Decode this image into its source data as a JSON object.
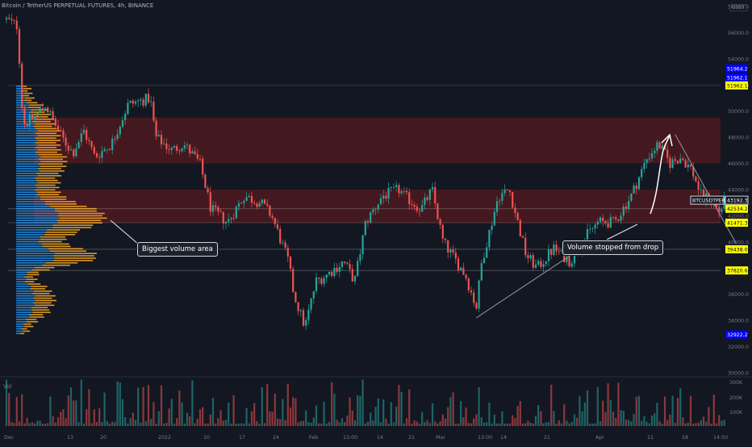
{
  "header": {
    "title": "Bitcoin / TetherUS PERPETUAL FUTURES, 4h, BINANCE",
    "currency": "USDT"
  },
  "volume_pane": {
    "label": "Vol",
    "ticks": [
      "300K",
      "200K",
      "100K"
    ]
  },
  "callouts": {
    "biggest_volume": "Biggest volume area",
    "volume_stopped": "Volume stopped from drop"
  },
  "price_ticks": [
    "58000.0",
    "56000.0",
    "54000.0",
    "52000.0",
    "50000.0",
    "48000.0",
    "46000.0",
    "44000.0",
    "42000.0",
    "40000.0",
    "38000.0",
    "36000.0",
    "34000.0",
    "32000.0",
    "30000.0"
  ],
  "time_ticks": [
    "Dec",
    "13",
    "20",
    "2022",
    "10",
    "17",
    "24",
    "Feb",
    "13:00",
    "14",
    "21",
    "Mar",
    "13:00",
    "14",
    "21",
    "Apr",
    "11",
    "18",
    "14:50"
  ],
  "price_labels": [
    {
      "text": "51964.2",
      "value": 51964.2,
      "bg": "#0000ff",
      "fg": "#ffffff"
    },
    {
      "text": "51962.1",
      "value": 51962.1,
      "bg": "#0000ff",
      "fg": "#ffffff"
    },
    {
      "text": "51962.1",
      "value": 51962.1,
      "bg": "#ffff00",
      "fg": "#000000"
    },
    {
      "text": "BTCUSDTPERP",
      "value": 43192.3,
      "bg": "#131722",
      "fg": "#ffffff"
    },
    {
      "text": "43192.3",
      "value": 43192.3,
      "bg": "#131722",
      "fg": "#ffffff"
    },
    {
      "text": "42534.2",
      "value": 42534.2,
      "bg": "#ffff00",
      "fg": "#000000"
    },
    {
      "text": "41471.3",
      "value": 41471.3,
      "bg": "#ffff00",
      "fg": "#000000"
    },
    {
      "text": "39438.0",
      "value": 39438.0,
      "bg": "#ffff00",
      "fg": "#000000"
    },
    {
      "text": "37820.6",
      "value": 37820.6,
      "bg": "#ffff00",
      "fg": "#000000"
    },
    {
      "text": "32922.2",
      "value": 32922.2,
      "bg": "#0000ff",
      "fg": "#ffffff"
    }
  ],
  "colors": {
    "bull": "#26a69a",
    "bear": "#ef5350",
    "zone": "#b71c1c",
    "vp_down": "#2196f3",
    "vp_up": "#f5a623",
    "lines": "#787b86"
  },
  "chart_data": {
    "type": "candlestick",
    "symbol": "BTCUSDTPERP",
    "timeframe": "4h",
    "exchange": "BINANCE",
    "last_price": 43192.3,
    "y_range": [
      30000,
      58000
    ],
    "grid": false,
    "key_levels": [
      51962.1,
      42534.2,
      41471.3,
      39438.0,
      37820.6
    ],
    "marked_values": [
      51964.2,
      32922.2
    ],
    "zones": [
      {
        "from": 46000,
        "to": 49500
      },
      {
        "from": 41471.3,
        "to": 44000
      }
    ],
    "path": [
      {
        "x": "Dec 01",
        "y": 57000
      },
      {
        "x": "Dec 03",
        "y": 56500
      },
      {
        "x": "Dec 04",
        "y": 49000
      },
      {
        "x": "Dec 06",
        "y": 49500
      },
      {
        "x": "Dec 08",
        "y": 50500
      },
      {
        "x": "Dec 11",
        "y": 48000
      },
      {
        "x": "Dec 13",
        "y": 46800
      },
      {
        "x": "Dec 15",
        "y": 48500
      },
      {
        "x": "Dec 17",
        "y": 46500
      },
      {
        "x": "Dec 20",
        "y": 47500
      },
      {
        "x": "Dec 23",
        "y": 50500
      },
      {
        "x": "Dec 27",
        "y": 51000
      },
      {
        "x": "Dec 28",
        "y": 48000
      },
      {
        "x": "Dec 31",
        "y": 47000
      },
      {
        "x": "Jan 02",
        "y": 47500
      },
      {
        "x": "Jan 05",
        "y": 46000
      },
      {
        "x": "Jan 07",
        "y": 42500
      },
      {
        "x": "Jan 10",
        "y": 41500
      },
      {
        "x": "Jan 13",
        "y": 43500
      },
      {
        "x": "Jan 16",
        "y": 43000
      },
      {
        "x": "Jan 18",
        "y": 42000
      },
      {
        "x": "Jan 21",
        "y": 38500
      },
      {
        "x": "Jan 22",
        "y": 36000
      },
      {
        "x": "Jan 24",
        "y": 33500
      },
      {
        "x": "Jan 26",
        "y": 37000
      },
      {
        "x": "Jan 28",
        "y": 37500
      },
      {
        "x": "Jan 31",
        "y": 38500
      },
      {
        "x": "Feb 02",
        "y": 37000
      },
      {
        "x": "Feb 04",
        "y": 41500
      },
      {
        "x": "Feb 07",
        "y": 43500
      },
      {
        "x": "Feb 10",
        "y": 44000
      },
      {
        "x": "Feb 11",
        "y": 43500
      },
      {
        "x": "Feb 14",
        "y": 42500
      },
      {
        "x": "Feb 16",
        "y": 44000
      },
      {
        "x": "Feb 18",
        "y": 40000
      },
      {
        "x": "Feb 22",
        "y": 37500
      },
      {
        "x": "Feb 24",
        "y": 35000
      },
      {
        "x": "Feb 25",
        "y": 38500
      },
      {
        "x": "Feb 28",
        "y": 43500
      },
      {
        "x": "Mar 02",
        "y": 44000
      },
      {
        "x": "Mar 05",
        "y": 39000
      },
      {
        "x": "Mar 07",
        "y": 38000
      },
      {
        "x": "Mar 10",
        "y": 39500
      },
      {
        "x": "Mar 13",
        "y": 38500
      },
      {
        "x": "Mar 16",
        "y": 40500
      },
      {
        "x": "Mar 18",
        "y": 41500
      },
      {
        "x": "Mar 21",
        "y": 41500
      },
      {
        "x": "Mar 24",
        "y": 43500
      },
      {
        "x": "Mar 27",
        "y": 46500
      },
      {
        "x": "Mar 29",
        "y": 47500
      },
      {
        "x": "Mar 31",
        "y": 46000
      },
      {
        "x": "Apr 02",
        "y": 46500
      },
      {
        "x": "Apr 04",
        "y": 45500
      },
      {
        "x": "Apr 06",
        "y": 43200
      },
      {
        "x": "Apr 07",
        "y": 43500
      },
      {
        "x": "Apr 09",
        "y": 42300
      },
      {
        "x": "Apr 10",
        "y": 43192
      }
    ]
  }
}
